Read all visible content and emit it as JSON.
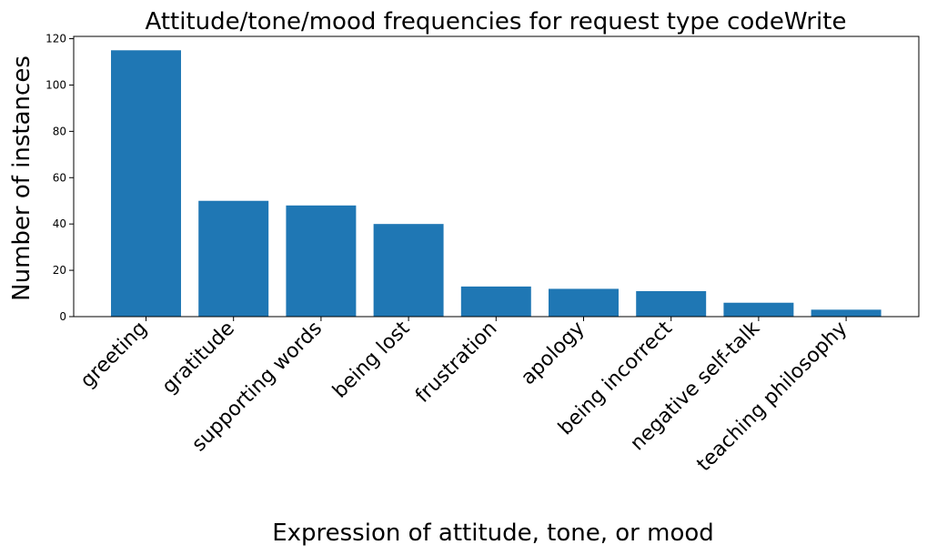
{
  "chart_data": {
    "type": "bar",
    "title": "Attitude/tone/mood frequencies for request type codeWrite",
    "xlabel": "Expression of attitude, tone, or mood",
    "ylabel": "Number of instances",
    "categories": [
      "greeting",
      "gratitude",
      "supporting words",
      "being lost",
      "frustration",
      "apology",
      "being incorrect",
      "negative self-talk",
      "teaching philosophy"
    ],
    "values": [
      115,
      50,
      48,
      40,
      13,
      12,
      11,
      6,
      3
    ],
    "ylim": [
      0,
      121
    ],
    "yticks": [
      0,
      20,
      40,
      60,
      80,
      100,
      120
    ],
    "bar_color": "#1f77b4",
    "grid": false,
    "legend": "none"
  }
}
